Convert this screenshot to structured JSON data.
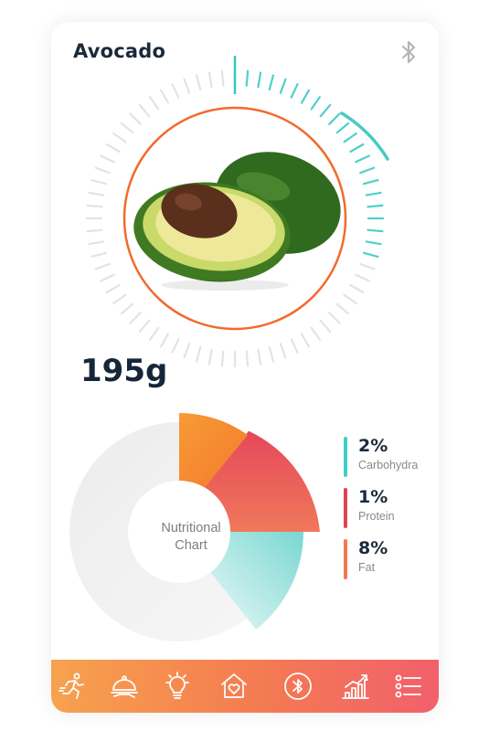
{
  "header": {
    "title": "Avocado",
    "bluetooth_icon": "bluetooth-icon"
  },
  "scale": {
    "weight": "195g",
    "dial_progress_percent": 30,
    "image": "avocado-photo"
  },
  "chart_data": {
    "type": "pie",
    "center_label_line1": "Nutritional",
    "center_label_line2": "Chart",
    "series": [
      {
        "name": "Carbohydra",
        "value_label": "2%",
        "color": "#4fd0c8"
      },
      {
        "name": "Protein",
        "value_label": "1%",
        "color": "#e8485a"
      },
      {
        "name": "Fat",
        "value_label": "8%",
        "color": "#f47a52"
      }
    ]
  },
  "legend": [
    {
      "pct": "2%",
      "name": "Carbohydra",
      "color": "#3ecfc8"
    },
    {
      "pct": "1%",
      "name": "Protein",
      "color": "#e2434f"
    },
    {
      "pct": "8%",
      "name": "Fat",
      "color": "#f37a4f"
    }
  ],
  "nav": {
    "items": [
      {
        "icon": "running-person-icon"
      },
      {
        "icon": "serving-dish-icon"
      },
      {
        "icon": "lightbulb-icon"
      },
      {
        "icon": "home-heart-icon"
      },
      {
        "icon": "bluetooth-circle-icon"
      },
      {
        "icon": "bar-chart-icon"
      },
      {
        "icon": "menu-list-icon"
      }
    ]
  },
  "colors": {
    "accent_teal": "#4fd0c8",
    "accent_orange": "#f47a52",
    "ring_orange": "#f26a2c",
    "text_dark": "#1b2a3a"
  }
}
